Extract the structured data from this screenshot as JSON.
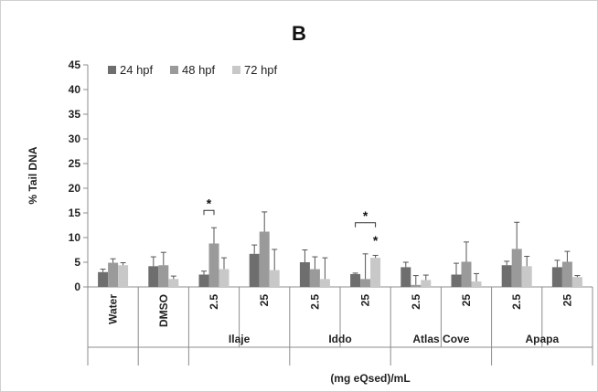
{
  "chart_data": {
    "type": "bar",
    "title": "B",
    "ylabel": "% Tail DNA",
    "xlabel": "(mg eQsed)/mL",
    "ylim": [
      0,
      45
    ],
    "yticks": [
      0,
      5,
      10,
      15,
      20,
      25,
      30,
      35,
      40,
      45
    ],
    "grid": false,
    "legend_position": "top-left",
    "categories": [
      "Water",
      "DMSO",
      "2.5",
      "25",
      "2.5",
      "25",
      "2.5",
      "25",
      "2.5",
      "25"
    ],
    "groups": [
      {
        "label": "",
        "start": 0,
        "end": 0
      },
      {
        "label": "",
        "start": 1,
        "end": 1
      },
      {
        "label": "Ilaje",
        "start": 2,
        "end": 3
      },
      {
        "label": "Iddo",
        "start": 4,
        "end": 5
      },
      {
        "label": "Atlas Cove",
        "start": 6,
        "end": 7
      },
      {
        "label": "Apapa",
        "start": 8,
        "end": 9
      }
    ],
    "series": [
      {
        "name": "24 hpf",
        "color": "#6e6e6e",
        "values": [
          3.0,
          4.2,
          2.5,
          6.7,
          5.0,
          2.6,
          4.0,
          2.5,
          4.4,
          4.0
        ],
        "errors": [
          0.6,
          1.9,
          0.7,
          1.8,
          2.5,
          0.2,
          1.0,
          2.3,
          0.8,
          1.4
        ]
      },
      {
        "name": "48 hpf",
        "color": "#9a9a9a",
        "values": [
          4.9,
          4.4,
          8.8,
          11.2,
          3.6,
          1.6,
          0.4,
          5.1,
          7.7,
          5.1
        ],
        "errors": [
          0.8,
          2.6,
          3.2,
          4.0,
          2.5,
          5.1,
          1.9,
          4.0,
          5.4,
          2.1
        ]
      },
      {
        "name": "72 hpf",
        "color": "#c8c8c8",
        "values": [
          4.4,
          1.6,
          3.6,
          3.4,
          1.6,
          5.9,
          1.4,
          1.1,
          4.2,
          2.0
        ],
        "errors": [
          0.5,
          0.6,
          2.3,
          4.2,
          4.3,
          0.5,
          1.0,
          1.6,
          2.0,
          0.3
        ]
      }
    ],
    "annotations": [
      {
        "text": "*",
        "type": "bracket",
        "category": 2,
        "from_series": 0,
        "to_series": 1,
        "y": 15.5
      },
      {
        "text": "*",
        "type": "bracket",
        "category": 5,
        "from_series": 0,
        "to_series": 2,
        "y": 13.0
      },
      {
        "text": "*",
        "type": "star",
        "category": 5,
        "series": 2,
        "y": 8.0
      }
    ]
  }
}
